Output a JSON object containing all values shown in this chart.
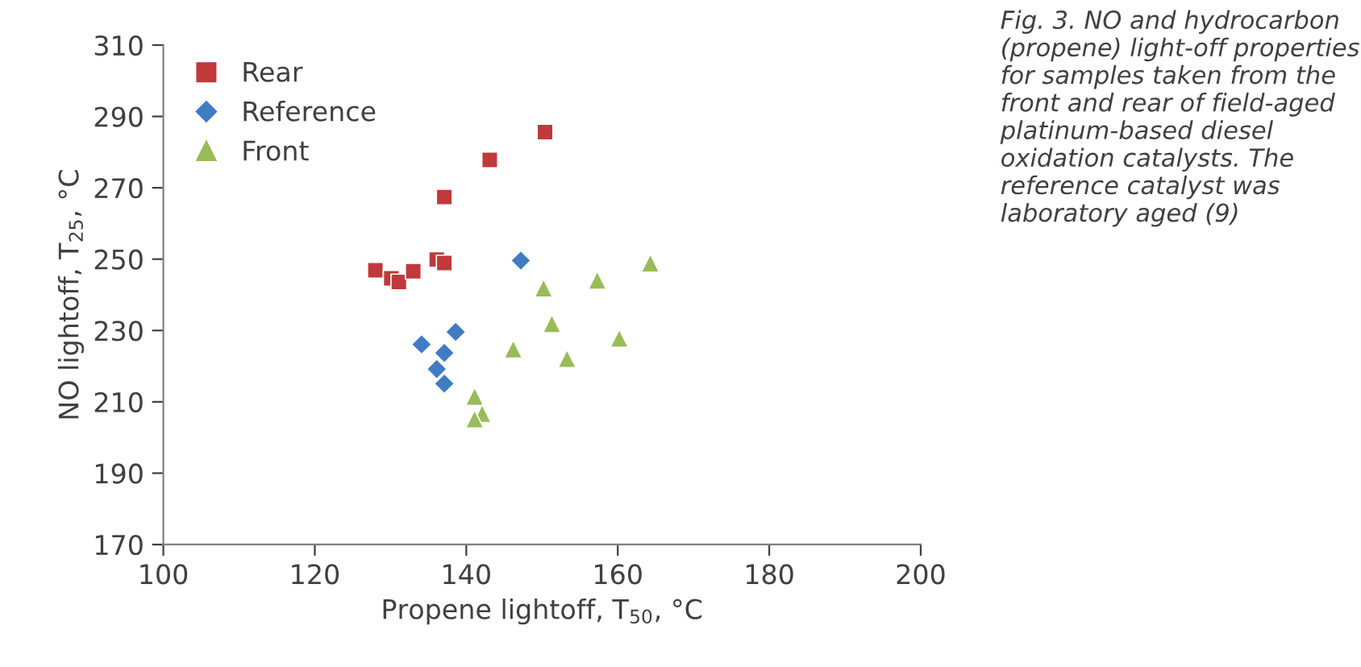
{
  "chart_data": {
    "type": "scatter",
    "xlabel": "Propene lightoff, T$_{50}$, °C",
    "ylabel": "NO lightoff, T$_{25}$, °C",
    "annotations": [
      "Fig. 3. NO and hydrocarbon (propene) light-off properties for samples taken from the front and rear of field-aged platinum-based diesel oxidation catalysts. The reference catalyst was laboratory aged (9)"
    ],
    "xlim": [
      100,
      200
    ],
    "xticks": [
      100,
      120,
      140,
      160,
      180,
      200
    ],
    "ylim": [
      170,
      310
    ],
    "yticks": [
      170,
      190,
      210,
      230,
      250,
      270,
      290,
      310
    ],
    "grid": false,
    "legend": "top left",
    "series": [
      {
        "name": "Rear",
        "color": "#c0393b",
        "marker": "square",
        "x": [
          128.0,
          130.1,
          131.1,
          133.0,
          136.1,
          137.1,
          137.1,
          143.1,
          150.4
        ],
        "values": [
          246.9,
          244.6,
          243.6,
          246.6,
          249.9,
          248.9,
          267.4,
          277.8,
          285.6
        ]
      },
      {
        "name": "Reference",
        "color": "#3f7cc4",
        "marker": "diamond",
        "x": [
          147.2,
          138.6,
          134.1,
          137.1,
          136.1,
          137.1
        ],
        "values": [
          249.6,
          229.6,
          226.1,
          223.7,
          219.2,
          215.1
        ]
      },
      {
        "name": "Front",
        "color": "#9bbb59",
        "marker": "triangle",
        "x": [
          164.3,
          157.3,
          150.2,
          151.3,
          160.2,
          153.3,
          146.2,
          141.1,
          142.1,
          141.1
        ],
        "values": [
          248.9,
          244.1,
          241.9,
          231.9,
          227.8,
          222.1,
          224.8,
          211.5,
          206.7,
          205.2
        ]
      }
    ]
  }
}
